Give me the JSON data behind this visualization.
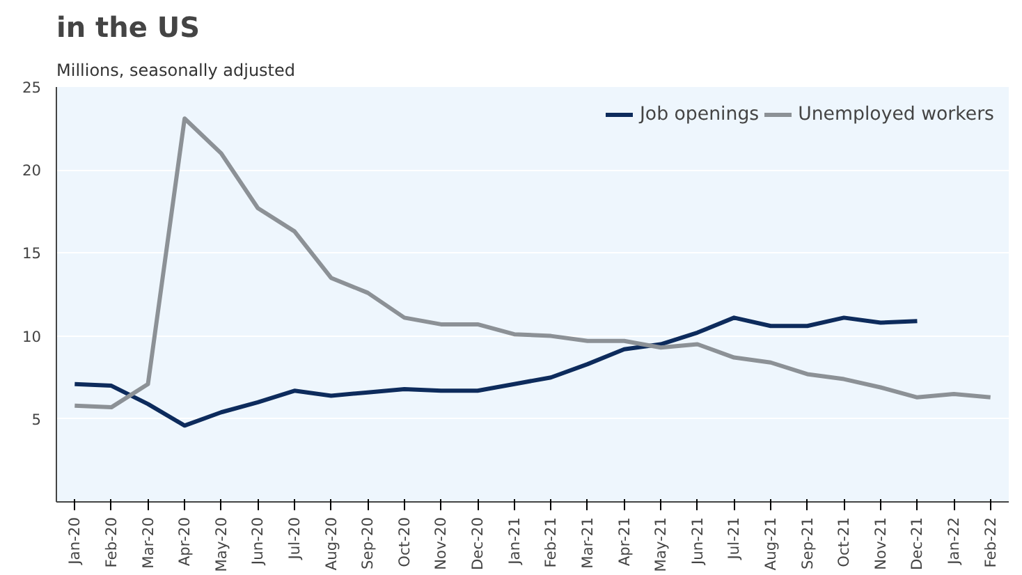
{
  "chart_data": {
    "type": "line",
    "title": "in the US",
    "subtitle": "Millions, seasonally adjusted",
    "categories": [
      "Jan-20",
      "Feb-20",
      "Mar-20",
      "Apr-20",
      "May-20",
      "Jun-20",
      "Jul-20",
      "Aug-20",
      "Sep-20",
      "Oct-20",
      "Nov-20",
      "Dec-20",
      "Jan-21",
      "Feb-21",
      "Mar-21",
      "Apr-21",
      "May-21",
      "Jun-21",
      "Jul-21",
      "Aug-21",
      "Sep-21",
      "Oct-21",
      "Nov-21",
      "Dec-21",
      "Jan-22",
      "Feb-22"
    ],
    "series": [
      {
        "name": "Job openings",
        "color": "#0d2b5c",
        "values": [
          7.1,
          7.0,
          5.9,
          4.6,
          5.4,
          6.0,
          6.7,
          6.4,
          6.6,
          6.8,
          6.7,
          6.7,
          7.1,
          7.5,
          8.3,
          9.2,
          9.5,
          10.2,
          11.1,
          10.6,
          10.6,
          11.1,
          10.8,
          10.9,
          null,
          null
        ]
      },
      {
        "name": "Unemployed workers",
        "color": "#8c9196",
        "values": [
          5.8,
          5.7,
          7.1,
          23.1,
          21.0,
          17.7,
          16.3,
          13.5,
          12.6,
          11.1,
          10.7,
          10.7,
          10.1,
          10.0,
          9.7,
          9.7,
          9.3,
          9.5,
          8.7,
          8.4,
          7.7,
          7.4,
          6.9,
          6.3,
          6.5,
          6.3
        ]
      }
    ],
    "ylim": [
      0,
      25
    ],
    "yticks": [
      5,
      10,
      15,
      20,
      25
    ],
    "grid": "y",
    "legend": "top right"
  }
}
